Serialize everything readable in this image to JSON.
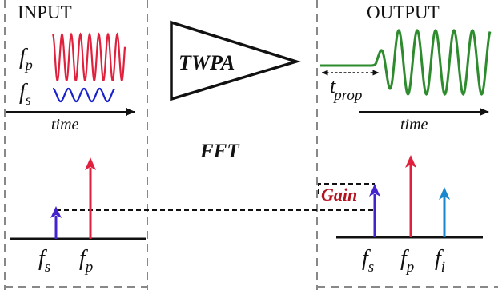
{
  "input": {
    "title": "INPUT",
    "pump_symbol": "f",
    "pump_sub": "p",
    "signal_symbol": "f",
    "signal_sub": "s",
    "time_label": "time"
  },
  "amplifier": {
    "label": "TWPA"
  },
  "output": {
    "title": "OUTPUT",
    "delay_symbol": "t",
    "delay_sub": "prop",
    "time_label": "time"
  },
  "fft_label": "FFT",
  "spectrum_in": {
    "signal_symbol": "f",
    "signal_sub": "s",
    "pump_symbol": "f",
    "pump_sub": "p"
  },
  "spectrum_out": {
    "gain_label": "Gain",
    "signal_symbol": "f",
    "signal_sub": "s",
    "pump_symbol": "f",
    "pump_sub": "p",
    "idler_symbol": "f",
    "idler_sub": "i"
  },
  "colors": {
    "pump": "#e0203c",
    "signal": "#4422cc",
    "idler": "#1a86cc",
    "output_wave": "#2e8b2e",
    "gain_text": "#b3121f",
    "frame": "#888888"
  }
}
